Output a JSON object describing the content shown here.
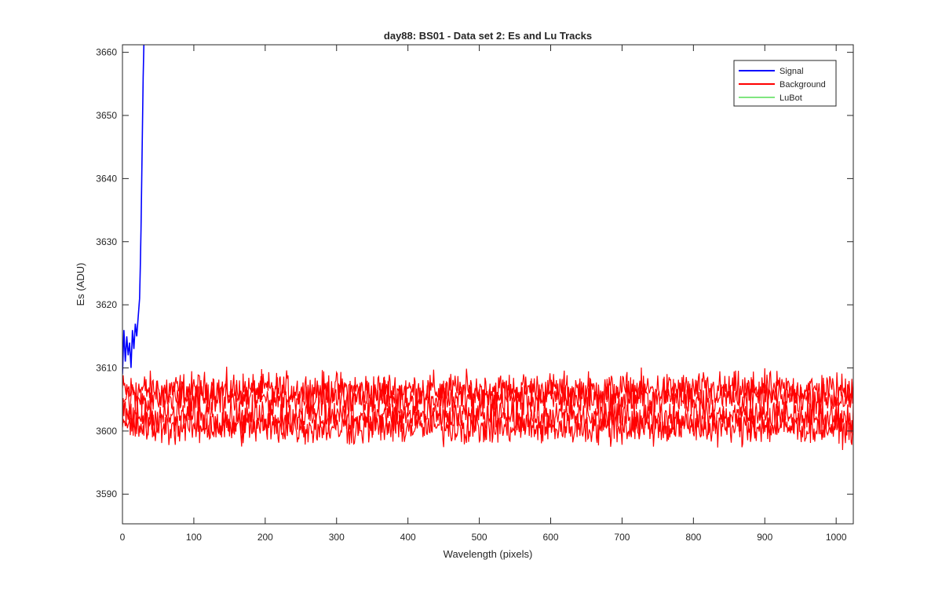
{
  "chart_data": {
    "type": "line",
    "title": "day88: BS01 - Data set 2: Es and Lu Tracks",
    "xlabel": "Wavelength (pixels)",
    "ylabel": "Es (ADU)",
    "xlim": [
      0,
      1024
    ],
    "ylim": [
      3585.3,
      3661.2
    ],
    "xticks": [
      0,
      100,
      200,
      300,
      400,
      500,
      600,
      700,
      800,
      900,
      1000
    ],
    "yticks": [
      3590,
      3600,
      3610,
      3620,
      3630,
      3640,
      3650,
      3660
    ],
    "grid": false,
    "legend_position": "top-right",
    "series": [
      {
        "name": "Signal",
        "color": "#0000ff",
        "x": [
          0,
          2,
          4,
          6,
          8,
          10,
          12,
          14,
          16,
          18,
          20,
          22,
          24,
          25,
          26,
          27,
          28,
          29,
          30
        ],
        "y": [
          3609,
          3616,
          3611,
          3615,
          3612,
          3614,
          3610,
          3616,
          3613,
          3617,
          3615,
          3618,
          3621,
          3626,
          3632,
          3640,
          3648,
          3656,
          3661.2
        ]
      },
      {
        "name": "Background",
        "color": "#ff0000",
        "x": [
          0,
          1024
        ],
        "y": [
          3606,
          3606
        ],
        "noise_amplitude": 2.5,
        "tracks_mean": [
          3606.5,
          3605.2,
          3602.3,
          3600.6
        ]
      },
      {
        "name": "LuBot",
        "color": "#00cc00",
        "x": [],
        "y": []
      }
    ]
  }
}
